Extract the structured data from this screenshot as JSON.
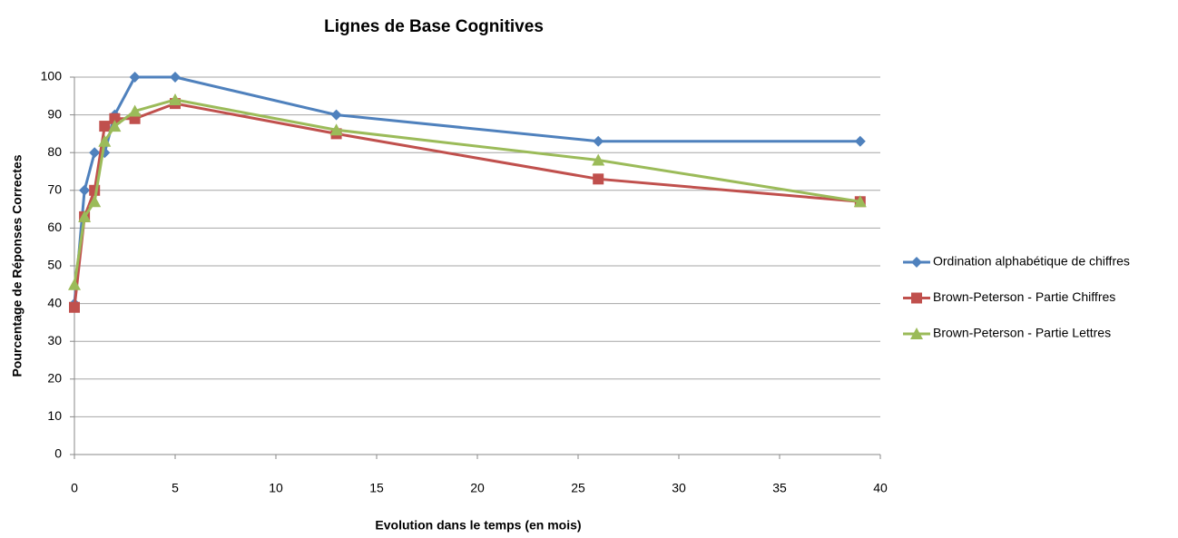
{
  "chart_data": {
    "type": "line",
    "title": "Lignes de Base Cognitives",
    "x_label": "Evolution dans le temps (en mois)",
    "y_label": "Pourcentage de Réponses Correctes",
    "x": [
      0,
      0.5,
      1,
      1.5,
      2,
      3,
      5,
      13,
      26,
      39
    ],
    "series": [
      {
        "name": "Ordination alphabétique de chiffres",
        "color": "#4f81bd",
        "marker": "diamond",
        "values": [
          40,
          70,
          80,
          80,
          90,
          100,
          100,
          90,
          83,
          83
        ]
      },
      {
        "name": "Brown-Peterson - Partie Chiffres",
        "color": "#c0504d",
        "marker": "square",
        "values": [
          39,
          63,
          70,
          87,
          89,
          89,
          93,
          85,
          73,
          67
        ]
      },
      {
        "name": "Brown-Peterson - Partie Lettres",
        "color": "#9bbb59",
        "marker": "triangle",
        "values": [
          45,
          63,
          67,
          83,
          87,
          91,
          94,
          86,
          78,
          67
        ]
      }
    ],
    "xlim": [
      0,
      40
    ],
    "xticks": [
      0,
      5,
      10,
      15,
      20,
      25,
      30,
      35,
      40
    ],
    "ylim": [
      0,
      100
    ],
    "yticks": [
      0,
      10,
      20,
      30,
      40,
      50,
      60,
      70,
      80,
      90,
      100
    ],
    "grid": true,
    "legend": "right"
  }
}
